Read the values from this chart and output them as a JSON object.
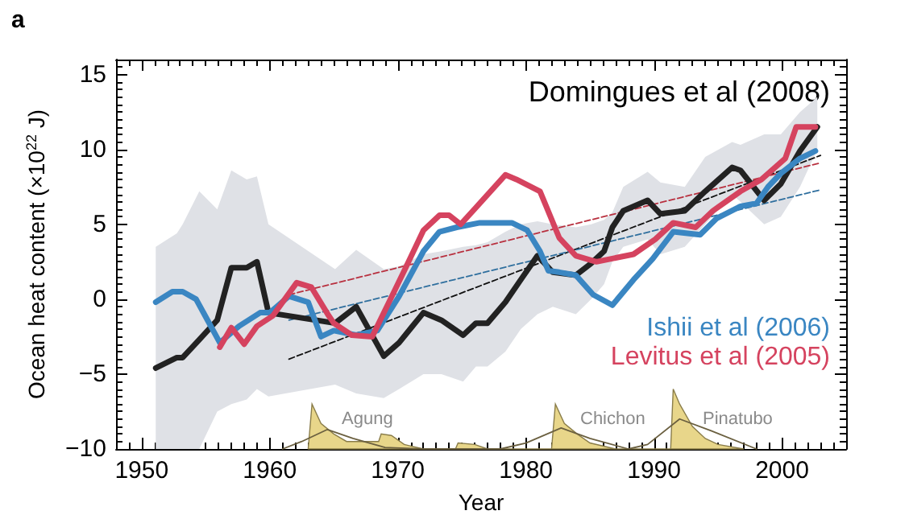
{
  "chart_data": {
    "type": "line",
    "title": "a",
    "xlabel": "Year",
    "ylabel": "Ocean heat content (×10$^{22}$ J)",
    "xlim": [
      1948,
      2005
    ],
    "xticks": [
      1950,
      1960,
      1970,
      1980,
      1990,
      2000
    ],
    "ylim": [
      -10,
      16
    ],
    "yticks": [
      -10,
      -5,
      0,
      5,
      10,
      15
    ],
    "grid": false,
    "marker": "none",
    "series": [
      {
        "name": "Domingues et al (2008)",
        "color": "#222222",
        "x": [
          1951.1,
          1952.75,
          1953.2,
          1954.5,
          1955.9,
          1957,
          1958.2,
          1959,
          1959.9,
          1965.1,
          1966.75,
          1968.9,
          1970.1,
          1972,
          1973.4,
          1975.1,
          1976.1,
          1977,
          1978.4,
          1979.6,
          1980.9,
          1982.1,
          1983.9,
          1985.1,
          1986.1,
          1986.75,
          1987.6,
          1989.5,
          1990.5,
          1992.4,
          1994,
          1996.1,
          1996.75,
          1998.6,
          1999.9,
          2001.4,
          2002.75
        ],
        "values": [
          -4.6,
          -3.9,
          -3.9,
          -2.7,
          -1.4,
          2.1,
          2.1,
          2.5,
          -0.9,
          -1.6,
          -0.5,
          -3.8,
          -2.9,
          -0.9,
          -1.4,
          -2.4,
          -1.6,
          -1.6,
          -0.2,
          1.3,
          2.9,
          1.8,
          1.6,
          2.4,
          3.2,
          4.8,
          5.9,
          6.6,
          5.7,
          5.9,
          7.2,
          8.8,
          8.6,
          6.6,
          7.7,
          9.9,
          11.5
        ],
        "lower": [
          -10,
          -10,
          -10,
          -10,
          -7.5,
          -7,
          -6.7,
          -6,
          -6.5,
          -5.7,
          -6.3,
          -6.6,
          -6,
          -5,
          -5,
          -5.5,
          -4.5,
          -4.5,
          -3.5,
          -2,
          -1,
          -0.5,
          -1,
          0,
          1,
          2.5,
          3.5,
          4,
          3,
          3.5,
          5,
          7,
          6.5,
          5,
          5.5,
          7.5,
          10
        ],
        "upper": [
          3.5,
          4.4,
          5,
          7.2,
          6,
          8.6,
          8,
          8.2,
          5,
          2,
          3.3,
          2,
          2.2,
          3,
          3.2,
          3.5,
          3.6,
          3.8,
          4.5,
          5,
          5.2,
          5,
          4.8,
          5,
          5.3,
          5.8,
          7.5,
          8.5,
          7.8,
          7.5,
          9.5,
          10.5,
          10.3,
          11,
          11,
          12.5,
          13.5
        ]
      },
      {
        "name": "Ishii et al (2006)",
        "color": "#3a86c2",
        "x": [
          1951.1,
          1952.4,
          1953.2,
          1954.25,
          1956.1,
          1957.6,
          1959.25,
          1960,
          1961.5,
          1963,
          1964,
          1965,
          1966.75,
          1968.4,
          1970.1,
          1972,
          1973.25,
          1974.6,
          1976.4,
          1978.9,
          1980.1,
          1981.1,
          1981.75,
          1982.6,
          1983.9,
          1985.25,
          1986.75,
          1988.4,
          1989.9,
          1991.5,
          1993.6,
          1994.9,
          1996.75,
          1998,
          1998.9,
          1999.9,
          2001.4,
          2002.6
        ],
        "values": [
          -0.2,
          0.5,
          0.5,
          0,
          -2.9,
          -1.8,
          -0.9,
          -0.9,
          0.2,
          -0.2,
          -2.5,
          -2.1,
          -2.4,
          -2.1,
          0.2,
          3.2,
          4.5,
          4.8,
          5.1,
          5.1,
          4.6,
          3.2,
          1.9,
          1.8,
          1.6,
          0.3,
          -0.4,
          1.3,
          2.7,
          4.5,
          4.3,
          5.4,
          6.2,
          6.4,
          7.5,
          8.4,
          9.4,
          9.9
        ]
      },
      {
        "name": "Levitus et al (2005)",
        "color": "#d5435f",
        "x": [
          1956.1,
          1957,
          1958,
          1959,
          1960.25,
          1962.1,
          1963.25,
          1964.6,
          1965,
          1966.4,
          1968,
          1969.25,
          1970.5,
          1972,
          1973.25,
          1974,
          1974.9,
          1976.4,
          1978.4,
          1979.25,
          1981.1,
          1982.6,
          1983.9,
          1985.5,
          1988.4,
          1990.1,
          1991.5,
          1993.25,
          1994.6,
          1996.75,
          1998.4,
          2000.25,
          2001.1,
          2002.6
        ],
        "values": [
          -3.2,
          -1.9,
          -3,
          -1.8,
          -1.1,
          1.1,
          0.8,
          -1.1,
          -1.6,
          -2.4,
          -2.5,
          -0.3,
          1.9,
          4.6,
          5.6,
          5.6,
          5,
          6.4,
          8.3,
          8,
          7.2,
          4.1,
          2.9,
          2.5,
          3,
          4,
          5.1,
          4.8,
          5.9,
          7.2,
          8,
          9.4,
          11.5,
          11.5
        ]
      },
      {
        "type": "line",
        "color": "#111111",
        "line_style": "dashed",
        "x": [
          1961.5,
          2003
        ],
        "values": [
          -4,
          9.6
        ]
      },
      {
        "type": "line",
        "color": "#b8303f",
        "line_style": "dashed",
        "x": [
          1961.5,
          2003
        ],
        "values": [
          0.3,
          9.1
        ]
      },
      {
        "type": "line",
        "color": "#2f6f9e",
        "line_style": "dashed",
        "x": [
          1961.5,
          2003
        ],
        "values": [
          -1.4,
          7.3
        ]
      },
      {
        "type": "area",
        "color": "#e8d68a",
        "x": [
          1963,
          1963.3,
          1964,
          1965,
          1966,
          1968.5,
          1968.7,
          1969.5,
          1970.5,
          1972,
          1974.5,
          1974.7,
          1976,
          1977,
          1982,
          1982.3,
          1983,
          1984,
          1985,
          1987,
          1991.3,
          1991.5,
          1992,
          1993,
          1994,
          1995,
          1997
        ],
        "values": [
          -10,
          -7,
          -8.3,
          -9,
          -9.5,
          -9.5,
          -9,
          -9.1,
          -9.7,
          -10,
          -10,
          -9.6,
          -9.7,
          -10,
          -10,
          -7,
          -8.3,
          -9,
          -9.6,
          -10,
          -10,
          -6,
          -7,
          -8.5,
          -9.3,
          -9.7,
          -10
        ]
      },
      {
        "type": "line",
        "color": "#6b6040",
        "x": [
          1961,
          1962.5,
          1964.5,
          1966.5,
          1969,
          1972,
          1978,
          1980,
          1982.75,
          1985,
          1988,
          1989.5,
          1992,
          1994.5,
          1998
        ],
        "values": [
          -10,
          -9.5,
          -8.7,
          -9.3,
          -9.9,
          -10,
          -10,
          -9.6,
          -8.6,
          -9.3,
          -10,
          -9.7,
          -8,
          -8.8,
          -10
        ]
      }
    ],
    "annotations": [
      "Agung",
      "Chichon",
      "Pinatubo"
    ]
  }
}
